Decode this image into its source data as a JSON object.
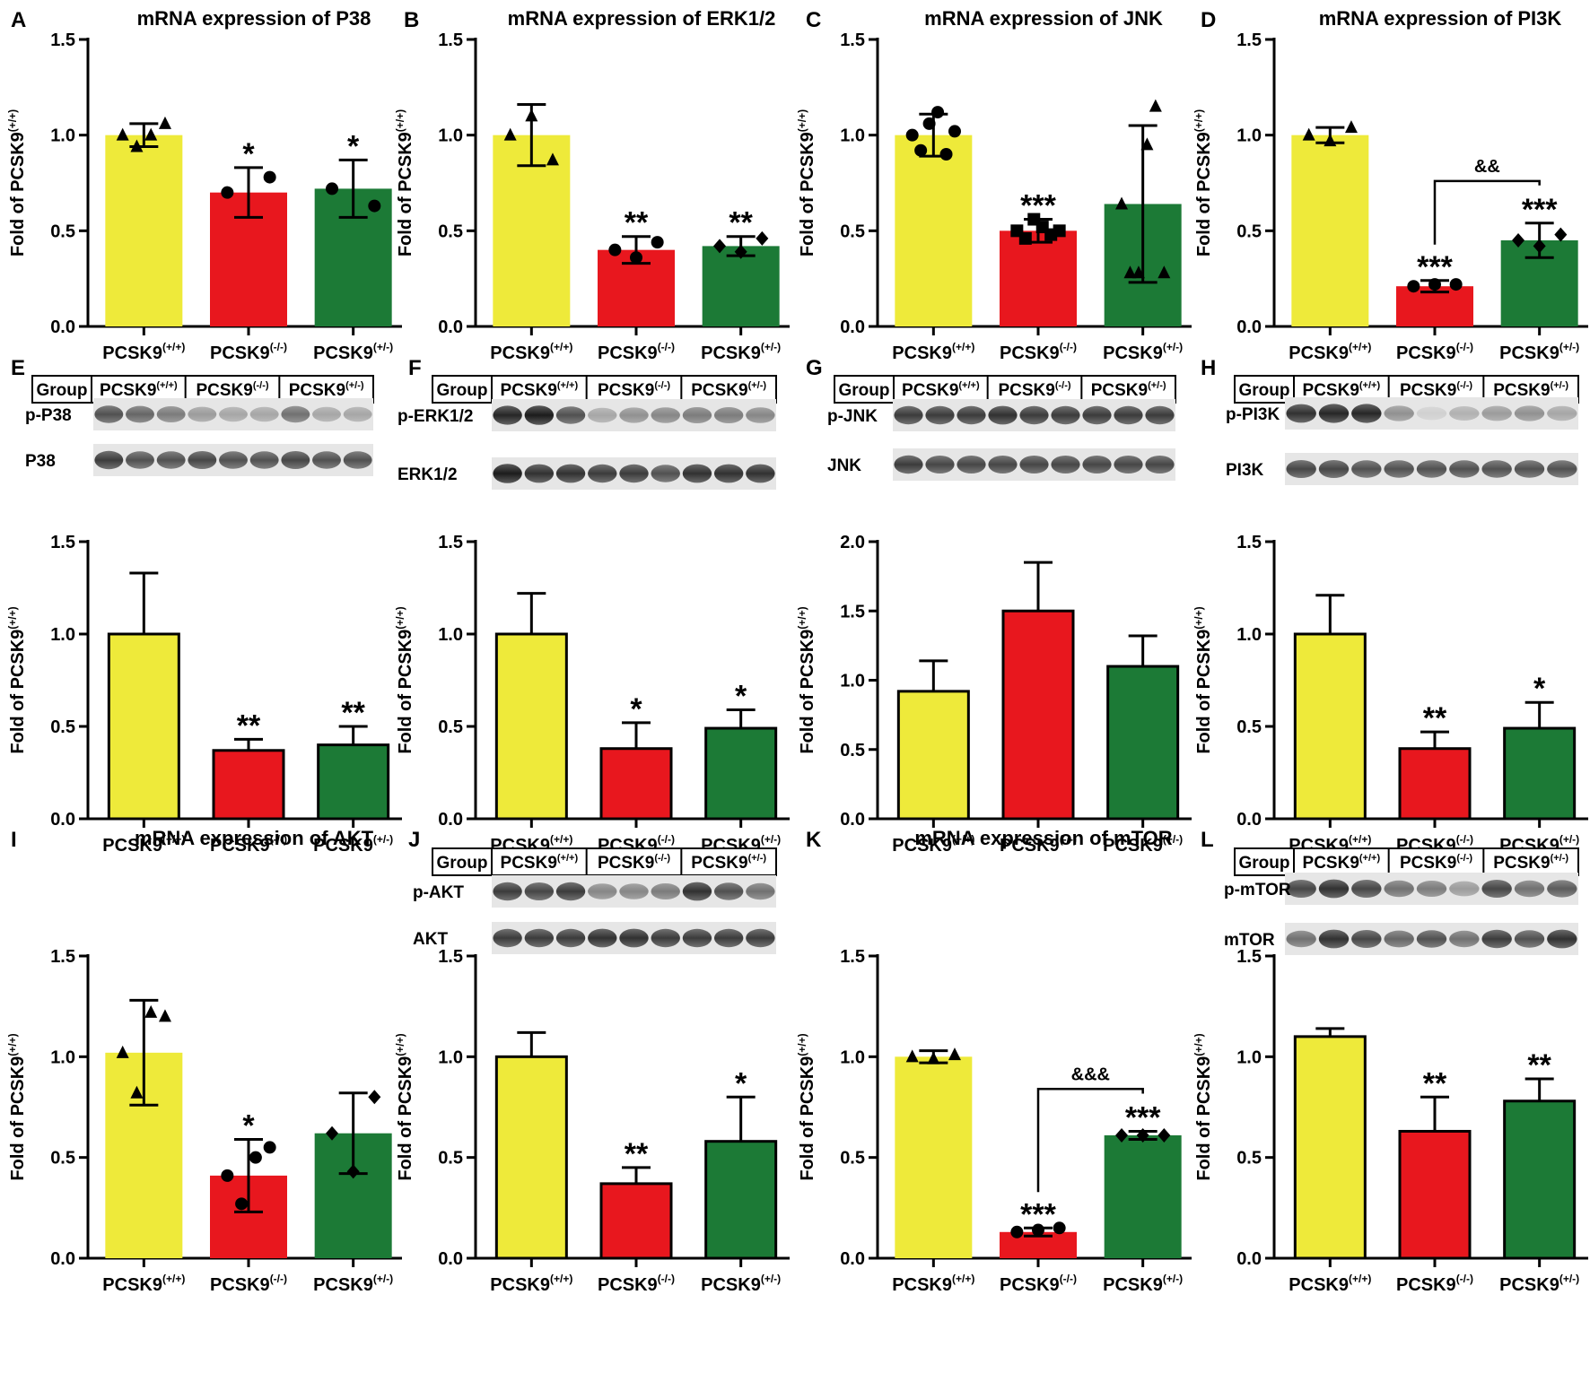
{
  "figure": {
    "colors": {
      "wt": "#eeea3a",
      "ko": "#e8171e",
      "het": "#1c7a36",
      "axis": "#000000"
    },
    "ylabel_main": "Fold of PCSK9",
    "ylabel_sup": "(+/+)",
    "category_base": "PCSK9",
    "category_sups": [
      "(+/+)",
      "(-/-)",
      "(+/-)"
    ]
  },
  "chart_data": [
    {
      "panel": "A",
      "type": "bar",
      "style": "mrna",
      "title": "mRNA expression of P38",
      "categories": [
        "PCSK9(+/+)",
        "PCSK9(-/-)",
        "PCSK9(+/-)"
      ],
      "values": [
        1.0,
        0.7,
        0.72
      ],
      "errors": [
        0.06,
        0.13,
        0.15
      ],
      "significance": [
        "",
        "*",
        "*"
      ],
      "ylim": [
        0,
        1.5
      ],
      "yticks": [
        "0.0",
        "0.5",
        "1.0",
        "1.5"
      ],
      "ylabel": "Fold of PCSK9(+/+)"
    },
    {
      "panel": "B",
      "type": "bar",
      "style": "mrna",
      "title": "mRNA expression of ERK1/2",
      "categories": [
        "PCSK9(+/+)",
        "PCSK9(-/-)",
        "PCSK9(+/-)"
      ],
      "values": [
        1.0,
        0.4,
        0.42
      ],
      "errors": [
        0.16,
        0.07,
        0.05
      ],
      "significance": [
        "",
        "**",
        "**"
      ],
      "ylim": [
        0,
        1.5
      ],
      "yticks": [
        "0.0",
        "0.5",
        "1.0",
        "1.5"
      ],
      "ylabel": "Fold of PCSK9(+/+)"
    },
    {
      "panel": "C",
      "type": "bar",
      "style": "mrna",
      "title": "mRNA expression of JNK",
      "categories": [
        "PCSK9(+/+)",
        "PCSK9(-/-)",
        "PCSK9(+/-)"
      ],
      "values": [
        1.0,
        0.5,
        0.64
      ],
      "errors": [
        0.11,
        0.06,
        0.41
      ],
      "significance": [
        "",
        "***",
        ""
      ],
      "ylim": [
        0,
        1.5
      ],
      "yticks": [
        "0.0",
        "0.5",
        "1.0",
        "1.5"
      ],
      "ylabel": "Fold of PCSK9(+/+)"
    },
    {
      "panel": "D",
      "type": "bar",
      "style": "mrna",
      "title": "mRNA expression of PI3K",
      "categories": [
        "PCSK9(+/+)",
        "PCSK9(-/-)",
        "PCSK9(+/-)"
      ],
      "values": [
        1.0,
        0.21,
        0.45
      ],
      "errors": [
        0.04,
        0.03,
        0.09
      ],
      "significance": [
        "",
        "***",
        "***"
      ],
      "bracket": {
        "from": 1,
        "to": 2,
        "label": "&&",
        "y": 0.76
      },
      "ylim": [
        0,
        1.5
      ],
      "yticks": [
        "0.0",
        "0.5",
        "1.0",
        "1.5"
      ],
      "ylabel": "Fold of PCSK9(+/+)"
    },
    {
      "panel": "E",
      "type": "bar",
      "style": "wb",
      "categories": [
        "PCSK9(+/+)",
        "PCSK9(-/-)",
        "PCSK9(+/-)"
      ],
      "values": [
        1.0,
        0.37,
        0.4
      ],
      "errors": [
        0.33,
        0.06,
        0.1
      ],
      "significance": [
        "",
        "**",
        "**"
      ],
      "ylim": [
        0,
        1.5
      ],
      "yticks": [
        "0.0",
        "0.5",
        "1.0",
        "1.5"
      ],
      "ylabel": "Fold of PCSK9(+/+)"
    },
    {
      "panel": "F",
      "type": "bar",
      "style": "wb",
      "categories": [
        "PCSK9(+/+)",
        "PCSK9(-/-)",
        "PCSK9(+/-)"
      ],
      "values": [
        1.0,
        0.38,
        0.49
      ],
      "errors": [
        0.22,
        0.14,
        0.1
      ],
      "significance": [
        "",
        "*",
        "*"
      ],
      "ylim": [
        0,
        1.5
      ],
      "yticks": [
        "0.0",
        "0.5",
        "1.0",
        "1.5"
      ],
      "ylabel": "Fold of PCSK9(+/+)"
    },
    {
      "panel": "G",
      "type": "bar",
      "style": "wb",
      "categories": [
        "PCSK9(+/+)",
        "PCSK9(-/-)",
        "PCSK9(+/-)"
      ],
      "values": [
        0.92,
        1.5,
        1.1
      ],
      "errors": [
        0.22,
        0.35,
        0.22
      ],
      "significance": [
        "",
        "",
        ""
      ],
      "ylim": [
        0,
        2.0
      ],
      "yticks": [
        "0.0",
        "0.5",
        "1.0",
        "1.5",
        "2.0"
      ],
      "ylabel": "Fold of PCSK9(+/+)"
    },
    {
      "panel": "H",
      "type": "bar",
      "style": "wb",
      "categories": [
        "PCSK9(+/+)",
        "PCSK9(-/-)",
        "PCSK9(+/-)"
      ],
      "values": [
        1.0,
        0.38,
        0.49
      ],
      "errors": [
        0.21,
        0.09,
        0.14
      ],
      "significance": [
        "",
        "**",
        "*"
      ],
      "ylim": [
        0,
        1.5
      ],
      "yticks": [
        "0.0",
        "0.5",
        "1.0",
        "1.5"
      ],
      "ylabel": "Fold of PCSK9(+/+)"
    },
    {
      "panel": "I",
      "type": "bar",
      "style": "mrna",
      "title": "mRNA expression of AKT",
      "categories": [
        "PCSK9(+/+)",
        "PCSK9(-/-)",
        "PCSK9(+/-)"
      ],
      "values": [
        1.02,
        0.41,
        0.62
      ],
      "errors": [
        0.26,
        0.18,
        0.2
      ],
      "significance": [
        "",
        "*",
        ""
      ],
      "ylim": [
        0,
        1.5
      ],
      "yticks": [
        "0.0",
        "0.5",
        "1.0",
        "1.5"
      ],
      "ylabel": "Fold of PCSK9(+/+)"
    },
    {
      "panel": "J",
      "type": "bar",
      "style": "wb",
      "categories": [
        "PCSK9(+/+)",
        "PCSK9(-/-)",
        "PCSK9(+/-)"
      ],
      "values": [
        1.0,
        0.37,
        0.58
      ],
      "errors": [
        0.12,
        0.08,
        0.22
      ],
      "significance": [
        "",
        "**",
        "*"
      ],
      "ylim": [
        0,
        1.5
      ],
      "yticks": [
        "0.0",
        "0.5",
        "1.0",
        "1.5"
      ],
      "ylabel": "Fold of PCSK9(+/+)"
    },
    {
      "panel": "K",
      "type": "bar",
      "style": "mrna",
      "title": "mRNA expression of mTOR",
      "categories": [
        "PCSK9(+/+)",
        "PCSK9(-/-)",
        "PCSK9(+/-)"
      ],
      "values": [
        1.0,
        0.13,
        0.61
      ],
      "errors": [
        0.03,
        0.02,
        0.02
      ],
      "significance": [
        "",
        "***",
        "***"
      ],
      "bracket": {
        "from": 1,
        "to": 2,
        "label": "&&&",
        "y": 0.84
      },
      "ylim": [
        0,
        1.5
      ],
      "yticks": [
        "0.0",
        "0.5",
        "1.0",
        "1.5"
      ],
      "ylabel": "Fold of PCSK9(+/+)"
    },
    {
      "panel": "L",
      "type": "bar",
      "style": "wb",
      "categories": [
        "PCSK9(+/+)",
        "PCSK9(-/-)",
        "PCSK9(+/-)"
      ],
      "values": [
        1.1,
        0.63,
        0.78
      ],
      "errors": [
        0.04,
        0.17,
        0.11
      ],
      "significance": [
        "",
        "**",
        "**"
      ],
      "ylim": [
        0,
        1.5
      ],
      "yticks": [
        "0.0",
        "0.5",
        "1.0",
        "1.5"
      ],
      "ylabel": "Fold of PCSK9(+/+)"
    }
  ],
  "scatter_points": {
    "A": [
      [
        1.0,
        0.94,
        1.0,
        1.06
      ],
      [
        0.7,
        0.78
      ],
      [
        0.72,
        0.63
      ]
    ],
    "B": [
      [
        1.0,
        1.1,
        0.87
      ],
      [
        0.4,
        0.36,
        0.44
      ],
      [
        0.42,
        0.39,
        0.46
      ]
    ],
    "C": [
      [
        1.0,
        0.92,
        1.06,
        1.12,
        0.9,
        1.02
      ],
      [
        0.5,
        0.46,
        0.56,
        0.52,
        0.48,
        0.5
      ],
      [
        0.64,
        0.28,
        0.28,
        0.95,
        1.15,
        0.28
      ]
    ],
    "D": [
      [
        1.0,
        0.97,
        1.04
      ],
      [
        0.21,
        0.22,
        0.22
      ],
      [
        0.45,
        0.42,
        0.48
      ]
    ],
    "I": [
      [
        1.02,
        0.82,
        1.22,
        1.2
      ],
      [
        0.41,
        0.27,
        0.5,
        0.55
      ],
      [
        0.62,
        0.43,
        0.8
      ]
    ],
    "K": [
      [
        1.0,
        0.99,
        1.01
      ],
      [
        0.13,
        0.14,
        0.15
      ],
      [
        0.61,
        0.61,
        0.61
      ]
    ]
  },
  "blots": {
    "group_label": "Group",
    "E": {
      "bands": [
        "p-P38",
        "P38"
      ]
    },
    "F": {
      "bands": [
        "p-ERK1/2",
        "ERK1/2"
      ]
    },
    "G": {
      "bands": [
        "p-JNK",
        "JNK"
      ]
    },
    "H": {
      "bands": [
        "p-PI3K",
        "PI3K"
      ]
    },
    "J": {
      "bands": [
        "p-AKT",
        "AKT"
      ]
    },
    "L": {
      "bands": [
        "p-mTOR",
        "mTOR"
      ]
    }
  }
}
